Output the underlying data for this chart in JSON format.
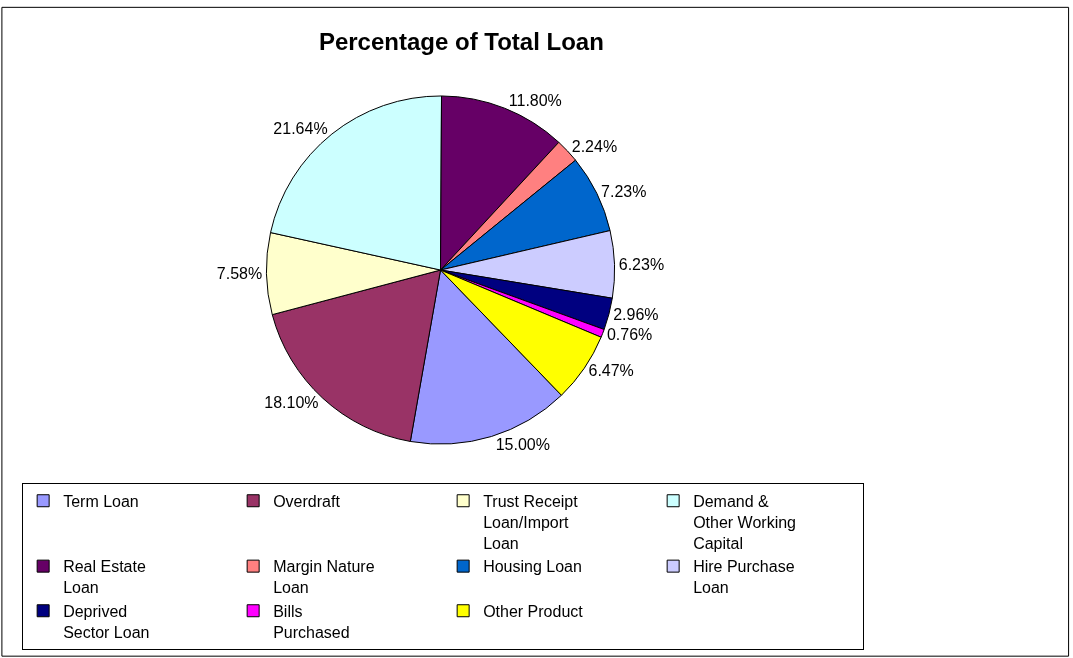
{
  "chart_data": {
    "type": "pie",
    "title": "Percentage of Total Loan",
    "categories": [
      "Term Loan",
      "Overdraft",
      "Trust Receipt Loan/Import Loan",
      "Demand & Other Working Capital",
      "Real Estate Loan",
      "Margin Nature Loan",
      "Housing Loan",
      "Hire Purchase Loan",
      "Deprived Sector Loan",
      "Bills Purchased",
      "Other Product"
    ],
    "values": [
      15.0,
      18.1,
      7.58,
      21.64,
      11.8,
      2.24,
      7.23,
      6.23,
      2.96,
      0.76,
      6.47
    ],
    "value_labels": [
      "15.00%",
      "18.10%",
      "7.58%",
      "21.64%",
      "11.80%",
      "2.24%",
      "7.23%",
      "6.23%",
      "2.96%",
      "0.76%",
      "6.47%"
    ],
    "colors": [
      "#9999ff",
      "#993366",
      "#ffffcc",
      "#ccffff",
      "#660066",
      "#ff8080",
      "#0066cc",
      "#ccccff",
      "#000080",
      "#ff00ff",
      "#ffff00"
    ],
    "legend": "bottom"
  }
}
